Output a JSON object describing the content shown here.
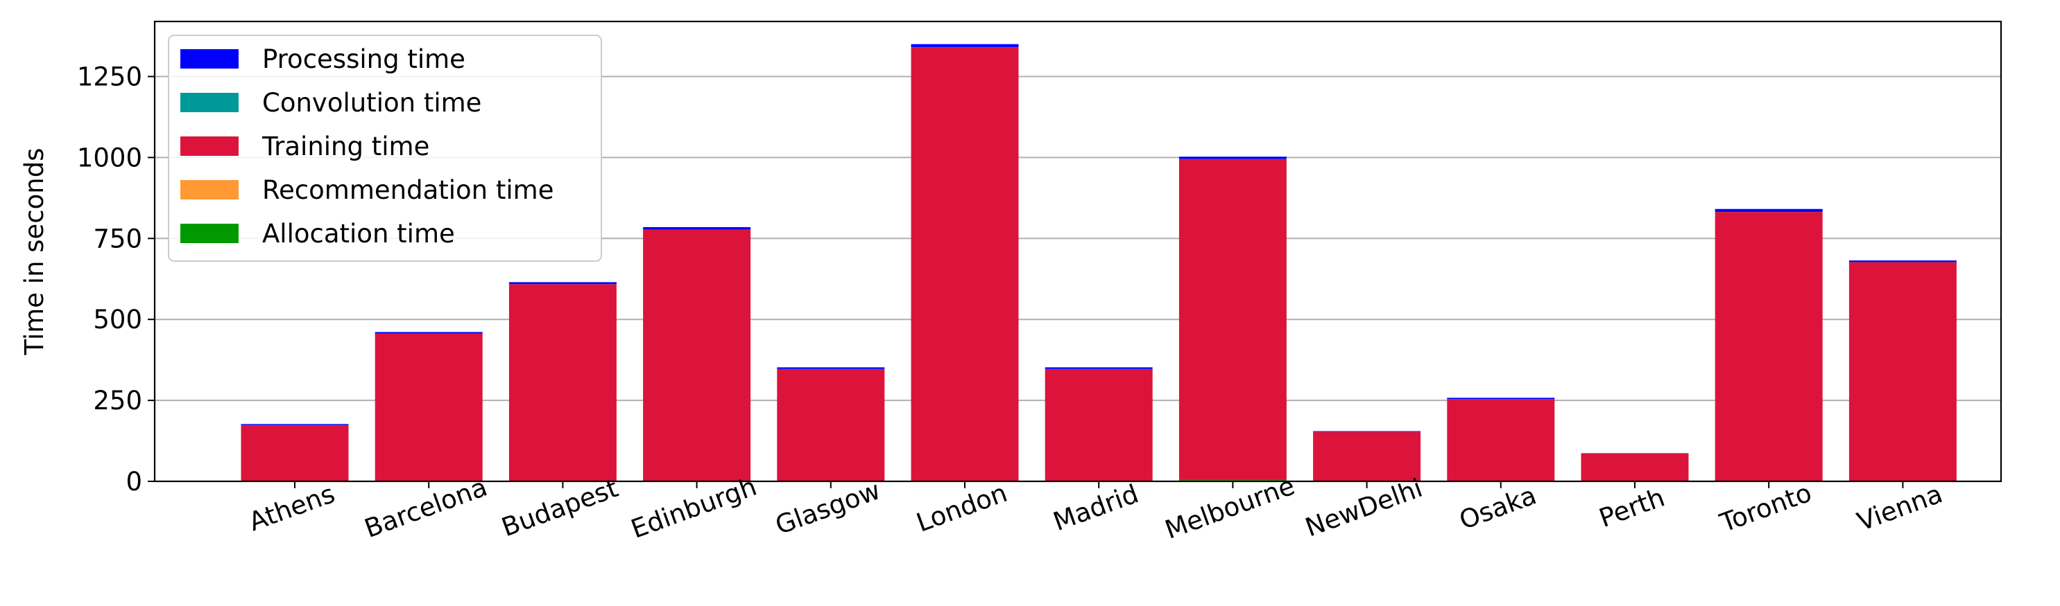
{
  "chart_data": {
    "type": "bar",
    "stacked": true,
    "title": "",
    "xlabel": "",
    "ylabel": "Time in seconds",
    "ylim": [
      0,
      1420
    ],
    "yticks": [
      0,
      250,
      500,
      750,
      1000,
      1250
    ],
    "grid": "y-major",
    "legend_placement": "top-left",
    "x_tick_rotation_deg": 20,
    "categories": [
      "Athens",
      "Barcelona",
      "Budapest",
      "Edinburgh",
      "Glasgow",
      "London",
      "Madrid",
      "Melbourne",
      "NewDelhi",
      "Osaka",
      "Perth",
      "Toronto",
      "Vienna"
    ],
    "series": [
      {
        "name": "Allocation time",
        "color": "#009900",
        "values": [
          0.5,
          0.5,
          0.5,
          0.5,
          0.5,
          0.5,
          0.5,
          4,
          0.5,
          0.5,
          0.5,
          0.5,
          0.5
        ]
      },
      {
        "name": "Recommendation time",
        "color": "#ff9933",
        "values": [
          0.2,
          0.2,
          0.2,
          0.2,
          0.2,
          0.2,
          0.2,
          0.2,
          0.2,
          0.2,
          0.2,
          0.2,
          0.2
        ]
      },
      {
        "name": "Training time",
        "color": "#dc143c",
        "values": [
          173,
          455,
          608,
          776,
          346,
          1340,
          346,
          991,
          152,
          253,
          85,
          831,
          676
        ]
      },
      {
        "name": "Convolution time",
        "color": "#009999",
        "values": [
          0.3,
          0.3,
          0.3,
          0.3,
          0.3,
          0.3,
          0.3,
          0.3,
          0.3,
          0.3,
          0.3,
          0.3,
          0.3
        ]
      },
      {
        "name": "Processing time",
        "color": "#0000ff",
        "values": [
          3,
          5,
          6,
          8,
          5,
          9,
          5,
          7,
          2,
          4,
          1,
          9,
          5
        ]
      }
    ],
    "legend_order": [
      "Processing time",
      "Convolution time",
      "Training time",
      "Recommendation time",
      "Allocation time"
    ]
  }
}
